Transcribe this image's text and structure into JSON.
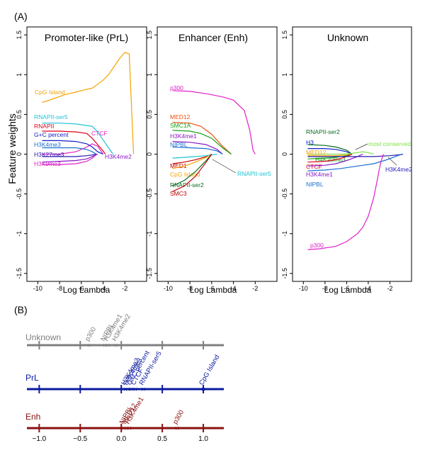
{
  "panel_a_label": "(A)",
  "panel_b_label": "(B)",
  "colors": {
    "orange": "#f5a300",
    "cyan": "#1fc3d6",
    "red": "#e0001b",
    "blue": "#1020c8",
    "steel": "#1a6fd0",
    "indigo": "#2a1ab0",
    "magenta": "#e020c8",
    "purple": "#8a18c8",
    "green": "#12a010",
    "darkgreen": "#0a6a20",
    "lime": "#7fe04a",
    "dred": "#c00000",
    "orangered": "#f05010",
    "gray": "#7f7f7f",
    "navy": "#0a1aa0",
    "maroon": "#8b1010"
  },
  "chart_data": [
    {
      "type": "line",
      "title": "Promoter-like (PrL)",
      "xlabel": "Log Lambda",
      "ylabel": "Feature weights",
      "xlim": [
        -11,
        0
      ],
      "ylim": [
        -1.6,
        1.6
      ],
      "xticks": [
        -10,
        -8,
        -6,
        -4,
        -2
      ],
      "yticks": [
        -1.5,
        -1.0,
        -0.5,
        0.0,
        0.5,
        1.0,
        1.5
      ],
      "series": [
        {
          "name": "CpG Island",
          "color_key": "orange",
          "x": [
            -9.6,
            -8.5,
            -7.5,
            -6.5,
            -6,
            -5,
            -4.5,
            -4,
            -3.5,
            -3,
            -2.5,
            -2,
            -1.6,
            -1.2
          ],
          "y": [
            0.65,
            0.7,
            0.75,
            0.78,
            0.8,
            0.83,
            0.88,
            0.93,
            1.0,
            1.1,
            1.2,
            1.28,
            1.26,
            0
          ]
        },
        {
          "name": "RNAPII-ser5",
          "color_key": "cyan",
          "x": [
            -9.6,
            -8,
            -6.5,
            -5,
            -4.5,
            -4,
            -3.5,
            -3.1
          ],
          "y": [
            0.39,
            0.39,
            0.38,
            0.35,
            0.28,
            0.18,
            0.08,
            0
          ]
        },
        {
          "name": "RNAPII",
          "color_key": "red",
          "x": [
            -9.6,
            -8,
            -6.5,
            -5.5,
            -5,
            -4.5,
            -4,
            -3.8
          ],
          "y": [
            0.29,
            0.29,
            0.28,
            0.26,
            0.2,
            0.12,
            0.04,
            0
          ]
        },
        {
          "name": "CTCF",
          "color_key": "magenta",
          "x": [
            -9.6,
            -8,
            -6.5,
            -5.5,
            -5,
            -4.5,
            -4
          ],
          "y": [
            0,
            0,
            0.03,
            0.09,
            0.13,
            0.1,
            0
          ]
        },
        {
          "name": "G+C percent",
          "color_key": "blue",
          "x": [
            -9.6,
            -8,
            -6.5,
            -5.5,
            -5,
            -4.5,
            -4
          ],
          "y": [
            0.17,
            0.17,
            0.16,
            0.13,
            0.09,
            0.03,
            0
          ]
        },
        {
          "name": "H3K4me3",
          "color_key": "steel",
          "x": [
            -9.6,
            -8,
            -6.5,
            -5.5,
            -5,
            -4.6
          ],
          "y": [
            0.08,
            0.08,
            0.08,
            0.06,
            0.03,
            0
          ]
        },
        {
          "name": "H3K27me3",
          "color_key": "indigo",
          "x": [
            -9.6,
            -8,
            -6.5,
            -5.5,
            -5,
            -4.6
          ],
          "y": [
            -0.03,
            -0.03,
            -0.03,
            -0.02,
            -0.01,
            0
          ]
        },
        {
          "name": "H3K9me3",
          "color_key": "magenta",
          "x": [
            -9.6,
            -8,
            -6.5,
            -5.5,
            -5,
            -4.6
          ],
          "y": [
            -0.13,
            -0.13,
            -0.12,
            -0.09,
            -0.05,
            0
          ]
        },
        {
          "name": "H3K4me2",
          "color_key": "purple",
          "x": [
            -9.6,
            -8,
            -6.5,
            -5.5,
            -5,
            -4.5
          ],
          "y": [
            -0.1,
            -0.09,
            -0.08,
            -0.06,
            -0.03,
            0
          ]
        }
      ]
    },
    {
      "type": "line",
      "title": "Enhancer (Enh)",
      "xlabel": "Log Lambda",
      "xlim": [
        -11,
        0
      ],
      "ylim": [
        -1.6,
        1.6
      ],
      "xticks": [
        -10,
        -8,
        -6,
        -4,
        -2
      ],
      "yticks": [
        -1.5,
        -1.0,
        -0.5,
        0.0,
        0.5,
        1.0,
        1.5
      ],
      "series": [
        {
          "name": "p300",
          "color_key": "magenta",
          "x": [
            -9.6,
            -8,
            -6.5,
            -5,
            -4,
            -3,
            -2.5,
            -2.2,
            -2
          ],
          "y": [
            0.8,
            0.79,
            0.76,
            0.72,
            0.68,
            0.55,
            0.3,
            0.05,
            0
          ]
        },
        {
          "name": "MED12",
          "color_key": "orangered",
          "x": [
            -9.6,
            -8,
            -7,
            -6,
            -5,
            -4.2
          ],
          "y": [
            0.4,
            0.39,
            0.35,
            0.25,
            0.1,
            0
          ]
        },
        {
          "name": "SMC1A",
          "color_key": "green",
          "x": [
            -9.6,
            -8,
            -7,
            -6,
            -5,
            -4.2
          ],
          "y": [
            0.3,
            0.29,
            0.26,
            0.2,
            0.08,
            0
          ]
        },
        {
          "name": "H3K4me1",
          "color_key": "purple",
          "x": [
            -9.6,
            -8,
            -6.5,
            -5.5,
            -5
          ],
          "y": [
            0.16,
            0.15,
            0.12,
            0.06,
            0
          ]
        },
        {
          "name": "NIPBL",
          "color_key": "steel",
          "x": [
            -9.6,
            -8,
            -6.5,
            -5.5,
            -5
          ],
          "y": [
            0.09,
            0.08,
            0.07,
            0.04,
            0
          ]
        },
        {
          "name": "MED1",
          "color_key": "dred",
          "x": [
            -9.6,
            -8.5,
            -7.5,
            -6.5,
            -6
          ],
          "y": [
            -0.12,
            -0.1,
            -0.07,
            -0.03,
            0
          ]
        },
        {
          "name": "CpG Island",
          "color_key": "orange",
          "x": [
            -9.6,
            -8.5,
            -7.5,
            -6.5,
            -6
          ],
          "y": [
            -0.18,
            -0.15,
            -0.1,
            -0.04,
            0
          ]
        },
        {
          "name": "RNAPII-ser5",
          "color_key": "cyan",
          "x": [
            -9.6,
            -8.5,
            -7.5,
            -6.5,
            -5.5
          ],
          "y": [
            -0.05,
            -0.04,
            -0.03,
            -0.02,
            0
          ]
        },
        {
          "name": "RNAPII-ser2",
          "color_key": "darkgreen",
          "x": [
            -9.6,
            -8.5,
            -7.5,
            -6.5,
            -6
          ],
          "y": [
            -0.4,
            -0.33,
            -0.22,
            -0.08,
            0
          ]
        },
        {
          "name": "SMC3",
          "color_key": "dred",
          "x": [
            -9.6,
            -8.5,
            -7.5,
            -6.5,
            -6
          ],
          "y": [
            -0.47,
            -0.4,
            -0.28,
            -0.1,
            0
          ]
        }
      ]
    },
    {
      "type": "line",
      "title": "Unknown",
      "xlabel": "Log Lambda",
      "xlim": [
        -11,
        0
      ],
      "ylim": [
        -1.6,
        1.6
      ],
      "xticks": [
        -10,
        -8,
        -6,
        -4,
        -2
      ],
      "yticks": [
        -1.5,
        -1.0,
        -0.5,
        0.0,
        0.5,
        1.0,
        1.5
      ],
      "series": [
        {
          "name": "RNAPII-ser2",
          "color_key": "darkgreen",
          "x": [
            -9.6,
            -8,
            -7,
            -6,
            -5.5
          ],
          "y": [
            0.12,
            0.11,
            0.09,
            0.05,
            0
          ]
        },
        {
          "name": "H3",
          "color_key": "blue",
          "x": [
            -9.6,
            -8,
            -7,
            -6,
            -5.5
          ],
          "y": [
            0.07,
            0.07,
            0.06,
            0.03,
            0
          ]
        },
        {
          "name": "most conserved",
          "color_key": "lime",
          "x": [
            -9.6,
            -8,
            -6.5,
            -5.5,
            -4.5,
            -4,
            -3.5
          ],
          "y": [
            0,
            0,
            0,
            0.01,
            0.03,
            0.02,
            0
          ]
        },
        {
          "name": "MED12",
          "color_key": "orange",
          "x": [
            -9.6,
            -8,
            -7,
            -6,
            -5.5
          ],
          "y": [
            -0.02,
            -0.02,
            -0.02,
            -0.01,
            0
          ]
        },
        {
          "name": "H4K20me3",
          "color_key": "green",
          "x": [
            -9.6,
            -8,
            -7,
            -6,
            -5.5
          ],
          "y": [
            -0.06,
            -0.05,
            -0.04,
            -0.02,
            0
          ]
        },
        {
          "name": "CTCF",
          "color_key": "red",
          "x": [
            -9.6,
            -8,
            -7,
            -6,
            -5.5
          ],
          "y": [
            -0.1,
            -0.09,
            -0.07,
            -0.03,
            0
          ]
        },
        {
          "name": "H3K4me1",
          "color_key": "purple",
          "x": [
            -9.6,
            -8,
            -7,
            -6,
            -5,
            -4.5
          ],
          "y": [
            -0.15,
            -0.14,
            -0.12,
            -0.08,
            -0.03,
            0
          ]
        },
        {
          "name": "H3K4me2",
          "color_key": "indigo",
          "x": [
            -9.6,
            -8,
            -6.5,
            -5,
            -3.5,
            -2,
            -1,
            -0.8
          ],
          "y": [
            -0.03,
            -0.03,
            -0.03,
            -0.03,
            -0.03,
            -0.02,
            -0.005,
            0
          ]
        },
        {
          "name": "NIPBL",
          "color_key": "steel",
          "x": [
            -9.6,
            -8,
            -6.5,
            -5,
            -3.5,
            -2.5,
            -1.5,
            -0.9
          ],
          "y": [
            -0.21,
            -0.2,
            -0.18,
            -0.15,
            -0.12,
            -0.08,
            -0.03,
            0
          ]
        },
        {
          "name": "p300",
          "color_key": "magenta",
          "x": [
            -9.6,
            -8.5,
            -7,
            -6,
            -5,
            -4.5,
            -4,
            -3.5,
            -3.2,
            -3,
            -2.8,
            -2.6
          ],
          "y": [
            -1.2,
            -1.19,
            -1.16,
            -1.1,
            -1.0,
            -0.92,
            -0.78,
            -0.55,
            -0.35,
            -0.2,
            -0.08,
            0
          ]
        }
      ]
    },
    {
      "type": "scatter",
      "title": "",
      "xlim": [
        -1.15,
        1.25
      ],
      "xticks": [
        -1.0,
        -0.5,
        0.0,
        0.5,
        1.0
      ],
      "xtick_labels": [
        "−1.0",
        "−0.5",
        "0.0",
        "0.5",
        "1.0"
      ],
      "series": [
        {
          "name": "Unknown",
          "color_key": "gray",
          "points": [
            {
              "label": "p300",
              "x": -0.39
            },
            {
              "label": "NIPBL",
              "x": -0.2
            },
            {
              "label": "H3K4me1",
              "x": -0.16
            },
            {
              "label": "H3K4me2",
              "x": -0.06
            }
          ]
        },
        {
          "name": "PrL",
          "color_key": "navy",
          "points": [
            {
              "label": "H3K4me2",
              "x": 0.05
            },
            {
              "label": "H3K4me3",
              "x": 0.08
            },
            {
              "label": "G+C percent",
              "x": 0.12
            },
            {
              "label": "CTCF",
              "x": 0.17
            },
            {
              "label": "RNAPII-ser5",
              "x": 0.27
            },
            {
              "label": "CpG Island",
              "x": 1.0
            }
          ]
        },
        {
          "name": "Enh",
          "color_key": "maroon",
          "points": [
            {
              "label": "NIPBL",
              "x": 0.03
            },
            {
              "label": "MED12",
              "x": 0.06
            },
            {
              "label": "H3K4me1",
              "x": 0.1
            },
            {
              "label": "p300",
              "x": 0.68
            }
          ]
        }
      ]
    }
  ]
}
